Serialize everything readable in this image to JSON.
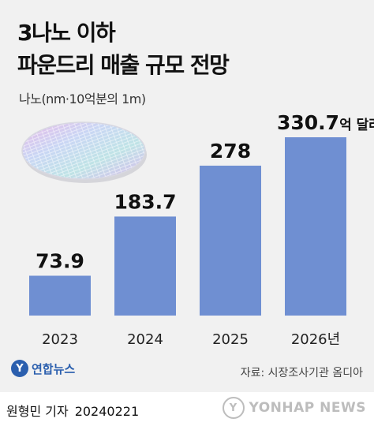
{
  "title_line1": "3나노 이하",
  "title_line2": "파운드리 매출 규모 전망",
  "unit_note": "나노(nm·10억분의 1m)",
  "source": "자료: 시장조사기관 옴디아",
  "logo": {
    "mark": "Y",
    "text": "연합뉴스"
  },
  "byline": {
    "author": "원형민 기자",
    "date": "20240221"
  },
  "watermark": {
    "mark": "Y",
    "text": "YONHAP NEWS"
  },
  "colors": {
    "bar": "#6f8fd2",
    "panel": "#f1f1f1"
  },
  "chart_data": {
    "type": "bar",
    "categories": [
      "2023",
      "2024",
      "2025",
      "2026년"
    ],
    "values": [
      73.9,
      183.7,
      278,
      330.7
    ],
    "value_labels": [
      "73.9",
      "183.7",
      "278",
      "330.7"
    ],
    "last_value_suffix": "억 달러",
    "title": "3나노 이하 파운드리 매출 규모 전망",
    "xlabel": "",
    "ylabel": "",
    "ylim": [
      0,
      330.7
    ],
    "grid": false,
    "legend": "none"
  }
}
